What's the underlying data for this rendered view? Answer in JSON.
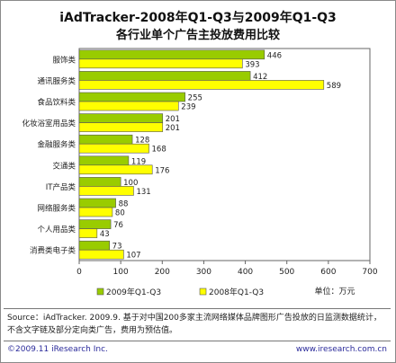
{
  "title_line1": "iAdTracker-2008年Q1-Q3与2009年Q1-Q3",
  "title_line2": "各行业单个广告主投放费用比较",
  "unit_label": "单位：万元",
  "source_line1": "Source：iAdTracker. 2009.9. 基于对中国200多家主流网络媒体品牌图形广告投放的日监测数据统计，",
  "source_line2": "不含文字链及部分定向类广告，费用为预估值。",
  "copyright": "©2009.11 iResearch Inc.",
  "website": "www.iresearch.com.cn",
  "chart_data": {
    "type": "bar",
    "orientation": "horizontal",
    "categories": [
      "服饰类",
      "通讯服务类",
      "食品饮料类",
      "化妆浴室用品类",
      "金融服务类",
      "交通类",
      "IT产品类",
      "网络服务类",
      "个人用品类",
      "消费类电子类"
    ],
    "series": [
      {
        "name": "2009年Q1-Q3",
        "color": "#99cc00",
        "values": [
          446,
          412,
          255,
          201,
          128,
          119,
          100,
          88,
          76,
          73
        ]
      },
      {
        "name": "2008年Q1-Q3",
        "color": "#ffff00",
        "values": [
          393,
          589,
          239,
          201,
          168,
          176,
          131,
          80,
          43,
          107
        ]
      }
    ],
    "xlim": [
      0,
      700
    ],
    "xticks": [
      0,
      100,
      200,
      300,
      400,
      500,
      600,
      700
    ],
    "grid": false,
    "legend_position": "bottom"
  }
}
